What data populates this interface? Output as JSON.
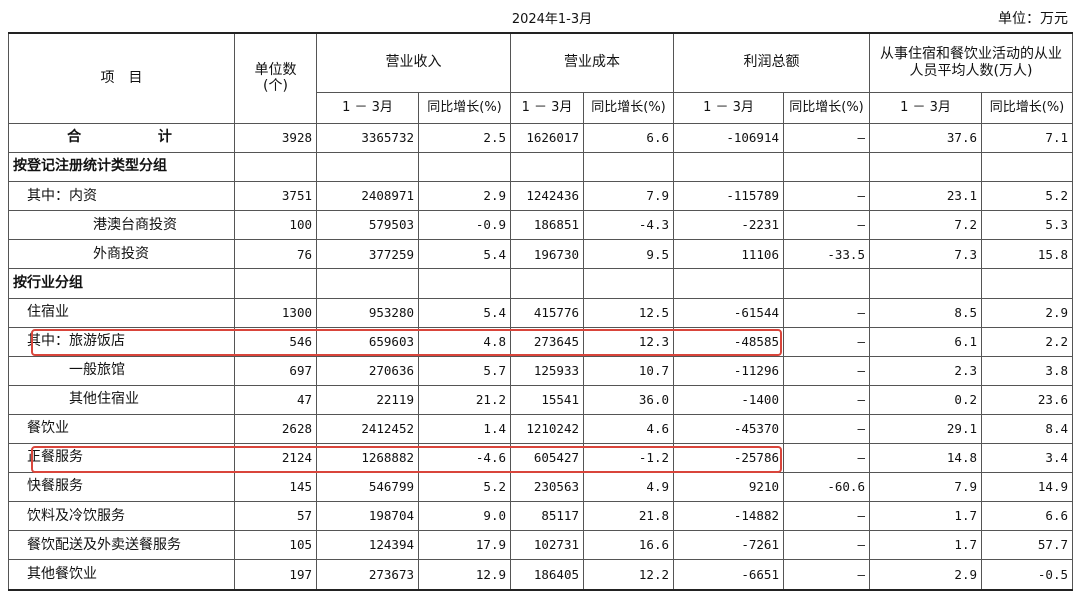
{
  "period": "2024年1-3月",
  "unit": "单位：万元",
  "headers": {
    "item": "项　目",
    "units_line1": "单位数",
    "units_line2": "(个)",
    "revenue": "营业收入",
    "cost": "营业成本",
    "profit": "利润总额",
    "employees": "从事住宿和餐饮业活动的从业人员平均人数(万人)",
    "sub_period": "1 － 3月",
    "sub_yoy": "同比增长(%)"
  },
  "rows": [
    {
      "label": "合 计",
      "v": [
        "3928",
        "3365732",
        "2.5",
        "1626017",
        "6.6",
        "-106914",
        "—",
        "37.6",
        "7.1"
      ]
    },
    {
      "label": "按登记注册统计类型分组",
      "v": [
        "",
        "",
        "",
        "",
        "",
        "",
        "",
        "",
        ""
      ]
    },
    {
      "label": "其中：内资",
      "v": [
        "3751",
        "2408971",
        "2.9",
        "1242436",
        "7.9",
        "-115789",
        "—",
        "23.1",
        "5.2"
      ]
    },
    {
      "label": "港澳台商投资",
      "v": [
        "100",
        "579503",
        "-0.9",
        "186851",
        "-4.3",
        "-2231",
        "—",
        "7.2",
        "5.3"
      ]
    },
    {
      "label": "外商投资",
      "v": [
        "76",
        "377259",
        "5.4",
        "196730",
        "9.5",
        "11106",
        "-33.5",
        "7.3",
        "15.8"
      ]
    },
    {
      "label": "按行业分组",
      "v": [
        "",
        "",
        "",
        "",
        "",
        "",
        "",
        "",
        ""
      ]
    },
    {
      "label": "住宿业",
      "v": [
        "1300",
        "953280",
        "5.4",
        "415776",
        "12.5",
        "-61544",
        "—",
        "8.5",
        "2.9"
      ]
    },
    {
      "label": "其中：旅游饭店",
      "v": [
        "546",
        "659603",
        "4.8",
        "273645",
        "12.3",
        "-48585",
        "—",
        "6.1",
        "2.2"
      ]
    },
    {
      "label": "一般旅馆",
      "v": [
        "697",
        "270636",
        "5.7",
        "125933",
        "10.7",
        "-11296",
        "—",
        "2.3",
        "3.8"
      ]
    },
    {
      "label": "其他住宿业",
      "v": [
        "47",
        "22119",
        "21.2",
        "15541",
        "36.0",
        "-1400",
        "—",
        "0.2",
        "23.6"
      ]
    },
    {
      "label": "餐饮业",
      "v": [
        "2628",
        "2412452",
        "1.4",
        "1210242",
        "4.6",
        "-45370",
        "—",
        "29.1",
        "8.4"
      ]
    },
    {
      "label": "正餐服务",
      "v": [
        "2124",
        "1268882",
        "-4.6",
        "605427",
        "-1.2",
        "-25786",
        "—",
        "14.8",
        "3.4"
      ]
    },
    {
      "label": "快餐服务",
      "v": [
        "145",
        "546799",
        "5.2",
        "230563",
        "4.9",
        "9210",
        "-60.6",
        "7.9",
        "14.9"
      ]
    },
    {
      "label": "饮料及冷饮服务",
      "v": [
        "57",
        "198704",
        "9.0",
        "85117",
        "21.8",
        "-14882",
        "—",
        "1.7",
        "6.6"
      ]
    },
    {
      "label": "餐饮配送及外卖送餐服务",
      "v": [
        "105",
        "124394",
        "17.9",
        "102731",
        "16.6",
        "-7261",
        "—",
        "1.7",
        "57.7"
      ]
    },
    {
      "label": "其他餐饮业",
      "v": [
        "197",
        "273673",
        "12.9",
        "186405",
        "12.2",
        "-6651",
        "—",
        "2.9",
        "-0.5"
      ]
    }
  ],
  "highlight_color": "#d9453b"
}
